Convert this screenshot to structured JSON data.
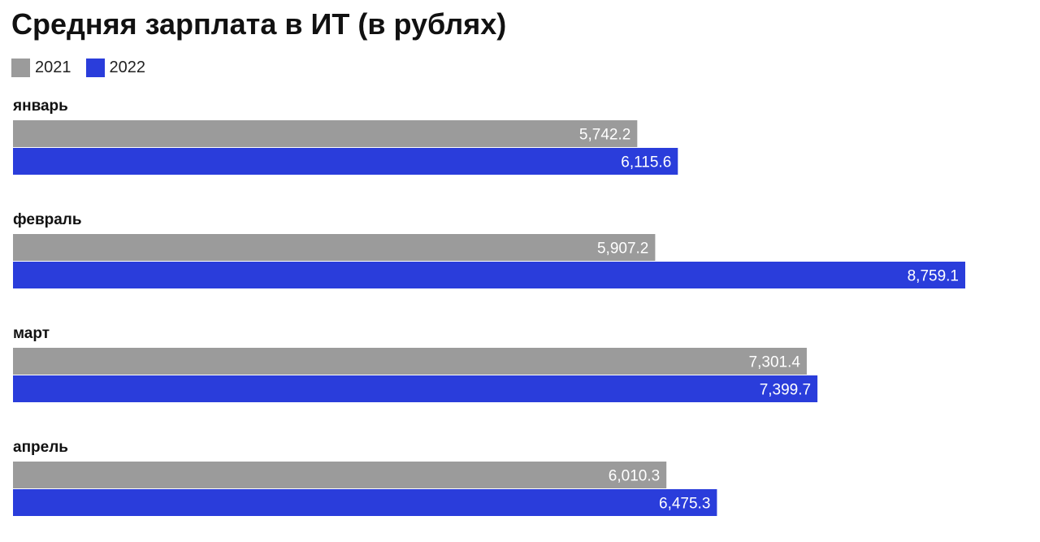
{
  "chart_data": {
    "type": "bar",
    "orientation": "horizontal",
    "title": "Средняя зарплата в ИТ (в рублях)",
    "categories": [
      "январь",
      "февраль",
      "март",
      "апрель"
    ],
    "series": [
      {
        "name": "2021",
        "color": "#9b9b9b",
        "values": [
          5742.2,
          5907.2,
          7301.4,
          6010.3
        ],
        "value_labels": [
          "5,742.2",
          "5,907.2",
          "7,301.4",
          "6,010.3"
        ]
      },
      {
        "name": "2022",
        "color": "#2a3ddb",
        "values": [
          6115.6,
          8759.1,
          7399.7,
          6475.3
        ],
        "value_labels": [
          "6,115.6",
          "8,759.1",
          "7,399.7",
          "6,475.3"
        ]
      }
    ],
    "xlabel": "",
    "ylabel": "",
    "xlim": [
      0,
      8759.1
    ],
    "grid": false,
    "legend": "top-left"
  }
}
